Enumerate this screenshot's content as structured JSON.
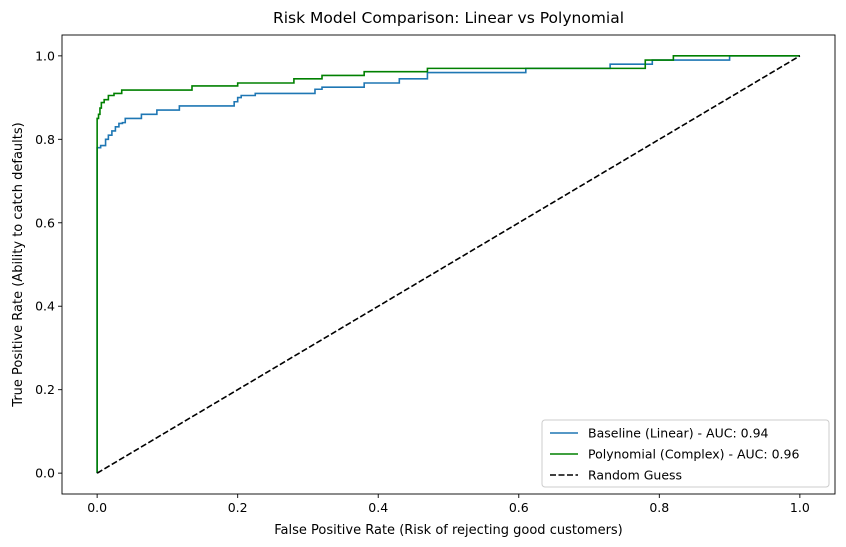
{
  "chart_data": {
    "type": "line",
    "title": "Risk Model Comparison: Linear vs Polynomial",
    "xlabel": "False Positive Rate (Risk of rejecting good customers)",
    "ylabel": "True Positive Rate (Ability to catch defaults)",
    "xlim": [
      -0.05,
      1.05
    ],
    "ylim": [
      -0.05,
      1.05
    ],
    "x_ticks": [
      0.0,
      0.2,
      0.4,
      0.6,
      0.8,
      1.0
    ],
    "y_ticks": [
      0.0,
      0.2,
      0.4,
      0.6,
      0.8,
      1.0
    ],
    "x_tick_labels": [
      "0.0",
      "0.2",
      "0.4",
      "0.6",
      "0.8",
      "1.0"
    ],
    "y_tick_labels": [
      "0.0",
      "0.2",
      "0.4",
      "0.6",
      "0.8",
      "1.0"
    ],
    "grid": false,
    "legend_position": "bottom-right",
    "series": [
      {
        "name": "Baseline (Linear) - AUC: 0.94",
        "color": "#1f77b4",
        "style": "solid",
        "step": true,
        "x": [
          0.0,
          0.0,
          0.005,
          0.005,
          0.012,
          0.012,
          0.016,
          0.016,
          0.021,
          0.021,
          0.026,
          0.026,
          0.031,
          0.031,
          0.036,
          0.036,
          0.04,
          0.04,
          0.063,
          0.063,
          0.085,
          0.085,
          0.117,
          0.117,
          0.195,
          0.195,
          0.2,
          0.2,
          0.205,
          0.205,
          0.225,
          0.225,
          0.31,
          0.31,
          0.32,
          0.32,
          0.38,
          0.38,
          0.43,
          0.43,
          0.47,
          0.47,
          0.61,
          0.61,
          0.73,
          0.73,
          0.79,
          0.79,
          0.9,
          0.9,
          1.0
        ],
        "y": [
          0.0,
          0.78,
          0.78,
          0.785,
          0.785,
          0.8,
          0.8,
          0.81,
          0.81,
          0.82,
          0.82,
          0.83,
          0.83,
          0.838,
          0.838,
          0.84,
          0.84,
          0.85,
          0.85,
          0.86,
          0.86,
          0.87,
          0.87,
          0.88,
          0.88,
          0.89,
          0.89,
          0.9,
          0.9,
          0.905,
          0.905,
          0.91,
          0.91,
          0.92,
          0.92,
          0.925,
          0.925,
          0.935,
          0.935,
          0.945,
          0.945,
          0.96,
          0.96,
          0.97,
          0.97,
          0.98,
          0.98,
          0.99,
          0.99,
          1.0,
          1.0
        ]
      },
      {
        "name": "Polynomial (Complex) - AUC: 0.96",
        "color": "#008000",
        "style": "solid",
        "step": true,
        "x": [
          0.0,
          0.0,
          0.002,
          0.002,
          0.004,
          0.004,
          0.006,
          0.006,
          0.01,
          0.01,
          0.016,
          0.016,
          0.024,
          0.024,
          0.035,
          0.035,
          0.135,
          0.135,
          0.2,
          0.2,
          0.28,
          0.28,
          0.32,
          0.32,
          0.38,
          0.38,
          0.47,
          0.47,
          0.78,
          0.78,
          0.82,
          0.82,
          1.0
        ],
        "y": [
          0.0,
          0.85,
          0.85,
          0.86,
          0.86,
          0.875,
          0.875,
          0.888,
          0.888,
          0.895,
          0.895,
          0.905,
          0.905,
          0.91,
          0.91,
          0.918,
          0.918,
          0.928,
          0.928,
          0.935,
          0.935,
          0.945,
          0.945,
          0.953,
          0.953,
          0.962,
          0.962,
          0.97,
          0.97,
          0.99,
          0.99,
          1.0,
          1.0
        ]
      },
      {
        "name": "Random Guess",
        "color": "#000000",
        "style": "dashed",
        "step": false,
        "x": [
          0.0,
          1.0
        ],
        "y": [
          0.0,
          1.0
        ]
      }
    ]
  }
}
